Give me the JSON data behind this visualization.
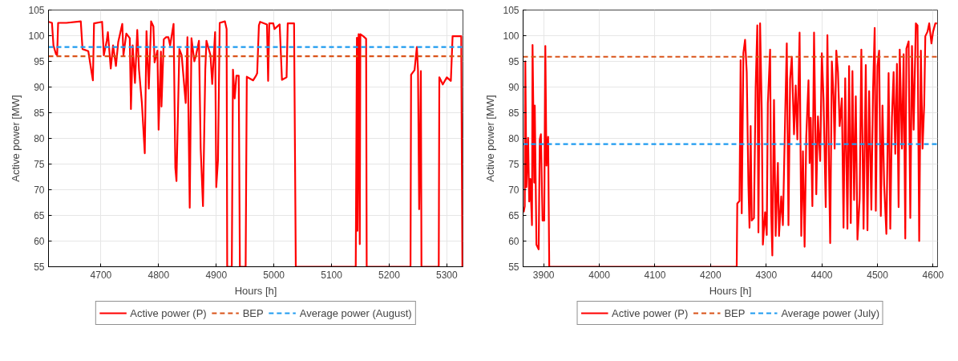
{
  "chart_data": [
    {
      "type": "line",
      "xlabel": "Hours [h]",
      "ylabel": "Active power [MW]",
      "xlim": [
        4609,
        5328
      ],
      "ylim": [
        55,
        105
      ],
      "xticks": [
        4700,
        4800,
        4900,
        5000,
        5100,
        5200,
        5300
      ],
      "yticks": [
        55,
        60,
        65,
        70,
        75,
        80,
        85,
        90,
        95,
        100,
        105
      ],
      "grid": true,
      "legend": "bottom",
      "line_style": "solid",
      "marker": "none",
      "series": [
        {
          "name": "Active power (P)",
          "color": "#ff0000",
          "x": [
            4609.5,
            4615,
            4617.6,
            4622,
            4624,
            4625.7,
            4640,
            4665,
            4668,
            4678,
            4684,
            4686,
            4688,
            4702,
            4705,
            4710,
            4712,
            4717,
            4721,
            4726,
            4730,
            4737,
            4739,
            4744,
            4750,
            4752,
            4755,
            4759,
            4763,
            4766,
            4771,
            4776,
            4779,
            4783,
            4787,
            4791,
            4793,
            4798,
            4800,
            4804,
            4805,
            4809,
            4813,
            4817,
            4820,
            4826,
            4829,
            4831,
            4836,
            4840,
            4847,
            4850,
            4854,
            4857,
            4862,
            4865,
            4870,
            4873,
            4877,
            4881,
            4883,
            4890,
            4893,
            4898,
            4900,
            4903,
            4906,
            4915,
            4918,
            4919,
            4927,
            4929,
            4932,
            4935,
            4939,
            4941,
            4951,
            4953,
            4964,
            4969,
            4971,
            4974,
            4976,
            4988,
            4990,
            4992,
            4999,
            5001,
            5010,
            5014,
            5022,
            5024,
            5035,
            5038,
            5142,
            5144,
            5145,
            5147,
            5149,
            5150,
            5155,
            5160,
            5161,
            5237,
            5238,
            5244,
            5248,
            5250,
            5252,
            5255,
            5256,
            5286,
            5287,
            5293,
            5300,
            5307,
            5310,
            5316,
            5325,
            5327
          ],
          "values": [
            102.7,
            102.5,
            98.1,
            96.4,
            96.2,
            102.5,
            102.5,
            102.8,
            97.4,
            97,
            92.7,
            91.3,
            102.4,
            102.7,
            96.2,
            99,
            100.7,
            93.6,
            98.1,
            94.1,
            98.8,
            102.3,
            96.2,
            100.4,
            99.5,
            85.7,
            98.1,
            90.8,
            101.1,
            93.4,
            86.9,
            77.1,
            100.9,
            89.7,
            102.8,
            101.8,
            94.8,
            97.1,
            81.7,
            96.9,
            86.2,
            99.3,
            99.7,
            99.7,
            98.1,
            102.3,
            74.3,
            71.7,
            97.4,
            96.2,
            86.9,
            99.7,
            66.5,
            99.5,
            95,
            96.2,
            99,
            78,
            66.8,
            93.4,
            99,
            96.2,
            90.6,
            100.7,
            70.5,
            75.7,
            102.5,
            102.8,
            101.3,
            55,
            55,
            93.4,
            87.8,
            92.2,
            92.2,
            55,
            55,
            92,
            91.3,
            92.2,
            92.7,
            102,
            102.7,
            102.2,
            91.2,
            102.4,
            102.4,
            101.3,
            102.2,
            91.4,
            91.9,
            102.4,
            102.4,
            55,
            55,
            99.6,
            62,
            100.3,
            59.4,
            100.3,
            99.9,
            99.4,
            55,
            55,
            92.4,
            93.3,
            97.8,
            93.3,
            66.2,
            93.1,
            55,
            55,
            91.9,
            90.5,
            91.9,
            91.2,
            99.9,
            99.9,
            99.9,
            55
          ]
        }
      ],
      "ref_lines": [
        {
          "axis": "y",
          "value": 96,
          "label": "BEP",
          "color": "#d95319",
          "line_style": "dashed"
        },
        {
          "axis": "y",
          "value": 97.8,
          "label": "Average power (August)",
          "color": "#1e9bf0",
          "line_style": "dashed"
        }
      ]
    },
    {
      "type": "line",
      "xlabel": "Hours [h]",
      "ylabel": "Active power [MW]",
      "xlim": [
        3863,
        4608
      ],
      "ylim": [
        55,
        105
      ],
      "xticks": [
        3900,
        4000,
        4100,
        4200,
        4300,
        4400,
        4500,
        4600
      ],
      "yticks": [
        55,
        60,
        65,
        70,
        75,
        80,
        85,
        90,
        95,
        100,
        105
      ],
      "grid": true,
      "legend": "bottom",
      "line_style": "solid",
      "marker": "none",
      "series": [
        {
          "name": "Active power (P)",
          "color": "#ff0000",
          "x": [
            3864,
            3866,
            3867,
            3869,
            3872,
            3874,
            3876,
            3879,
            3880,
            3883,
            3884,
            3887,
            3891,
            3893,
            3895,
            3898,
            3901,
            3903,
            3905,
            3908,
            3910,
            4247,
            4248,
            4252,
            4254,
            4256,
            4259,
            4262,
            4265,
            4268,
            4270,
            4272,
            4274,
            4278,
            4281,
            4284,
            4286,
            4289,
            4292,
            4294,
            4298,
            4301,
            4303,
            4307,
            4309,
            4311,
            4314,
            4317,
            4321,
            4323,
            4327,
            4330,
            4334,
            4337,
            4340,
            4343,
            4346,
            4350,
            4353,
            4356,
            4360,
            4363,
            4366,
            4369,
            4372,
            4376,
            4378,
            4380,
            4383,
            4386,
            4390,
            4393,
            4397,
            4400,
            4403,
            4407,
            4410,
            4413,
            4415,
            4418,
            4421,
            4423,
            4426,
            4429,
            4432,
            4436,
            4439,
            4442,
            4446,
            4449,
            4452,
            4455,
            4458,
            4461,
            4464,
            4468,
            4471,
            4475,
            4479,
            4482,
            4485,
            4489,
            4492,
            4495,
            4497,
            4500,
            4503,
            4506,
            4509,
            4512,
            4516,
            4520,
            4523,
            4526,
            4529,
            4532,
            4535,
            4538,
            4540,
            4544,
            4547,
            4550,
            4552,
            4556,
            4559,
            4562,
            4565,
            4569,
            4572,
            4575,
            4578,
            4581,
            4584,
            4586,
            4590,
            4593,
            4597,
            4600,
            4604,
            4607
          ],
          "values": [
            65.6,
            66.8,
            95,
            70.5,
            80.1,
            67.7,
            72.1,
            63.1,
            98.2,
            71.4,
            86.4,
            59.3,
            58.4,
            79.8,
            80.8,
            64,
            64,
            98,
            74.7,
            80.3,
            55,
            55,
            67.3,
            67.8,
            95.2,
            65.4,
            96.6,
            99.2,
            92.9,
            71,
            62.6,
            82.4,
            64,
            64.5,
            89.6,
            102,
            61.7,
            102.4,
            85.4,
            59.3,
            65.6,
            61.2,
            86.8,
            97.3,
            65.6,
            57.2,
            87.5,
            61,
            75.2,
            61,
            68.7,
            63.1,
            84,
            98.5,
            63.1,
            91.5,
            95.9,
            80.8,
            90.3,
            79.8,
            100.6,
            61,
            77.5,
            58.9,
            80.3,
            91.3,
            75.2,
            84,
            66.8,
            100.6,
            69.1,
            84.3,
            75.6,
            96.6,
            87.8,
            66.6,
            100.1,
            73.3,
            59.6,
            95,
            88.2,
            78,
            97.1,
            92.9,
            82.4,
            87.8,
            62.6,
            91.7,
            62.4,
            94.1,
            63.5,
            93.1,
            68,
            88.2,
            60.3,
            68.2,
            97.3,
            62.4,
            94.3,
            62.1,
            89.2,
            66.1,
            89.2,
            101.5,
            65.9,
            94.1,
            97.1,
            64.9,
            86.4,
            71,
            61.4,
            92.7,
            62.4,
            84,
            92.9,
            77,
            94.5,
            66.6,
            97.3,
            78,
            96.4,
            60.5,
            97.5,
            98.9,
            64.5,
            98,
            81.7,
            102.4,
            102,
            60,
            97.1,
            78,
            86.6,
            99.9,
            100.8,
            102.4,
            98.5,
            100.8,
            102.4,
            102.4
          ]
        }
      ],
      "ref_lines": [
        {
          "axis": "y",
          "value": 95.9,
          "label": "BEP",
          "color": "#d95319",
          "line_style": "dashed"
        },
        {
          "axis": "y",
          "value": 78.9,
          "label": "Average power (July)",
          "color": "#1e9bf0",
          "line_style": "dashed"
        }
      ]
    }
  ]
}
